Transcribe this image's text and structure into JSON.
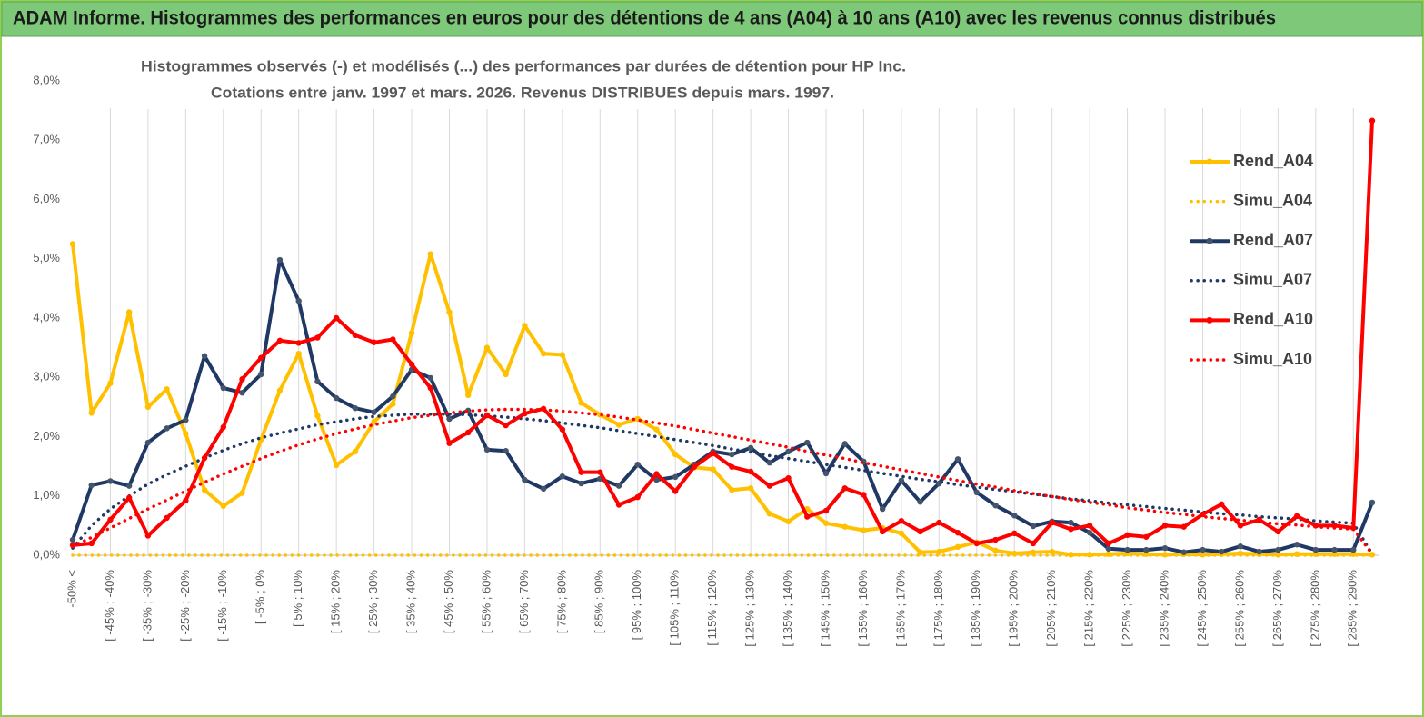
{
  "chart_data": {
    "type": "line",
    "title": "ADAM Informe. Histogrammes des performances en euros pour des détentions de 4 ans (A04) à 10 ans (A10) avec les revenus connus distribués",
    "subtitle": [
      "Histogrammes observés (-) et modélisés (...) des performances par durées de détention pour HP Inc.",
      "Cotations entre janv. 1997 et mars. 2026. Revenus DISTRIBUES depuis mars. 1997."
    ],
    "categories": [
      "-50% <",
      null,
      "[ -45% ; -40%",
      null,
      "[ -35% ; -30%",
      null,
      "[ -25% ; -20%",
      null,
      "[ -15% ; -10%",
      null,
      "[ -5% ; 0%",
      null,
      "[ 5% ; 10%",
      null,
      "[ 15% ; 20%",
      null,
      "[ 25% ; 30%",
      null,
      "[ 35% ; 40%",
      null,
      "[ 45% ; 50%",
      null,
      "[ 55% ; 60%",
      null,
      "[ 65% ; 70%",
      null,
      "[ 75% ; 80%",
      null,
      "[ 85% ; 90%",
      null,
      "[ 95% ; 100%",
      null,
      "[ 105% ; 110%",
      null,
      "[ 115% ; 120%",
      null,
      "[ 125% ; 130%",
      null,
      "[ 135% ; 140%",
      null,
      "[ 145% ; 150%",
      null,
      "[ 155% ; 160%",
      null,
      "[ 165% ; 170%",
      null,
      "[ 175% ; 180%",
      null,
      "[ 185% ; 190%",
      null,
      "[ 195% ; 200%",
      null,
      "[ 205% ; 210%",
      null,
      "[ 215% ; 220%",
      null,
      "[ 225% ; 230%",
      null,
      "[ 235% ; 240%",
      null,
      "[ 245% ; 250%",
      null,
      "[ 255% ; 260%",
      null,
      "[ 265% ; 270%",
      null,
      "[ 275% ; 280%",
      null,
      "[ 285% ; 290%",
      null
    ],
    "series": [
      {
        "name": "Rend_A04",
        "color": "#ffc000",
        "style": "solid",
        "marker": true,
        "values": [
          5.25,
          2.4,
          2.9,
          4.1,
          2.5,
          2.8,
          2.05,
          1.1,
          0.83,
          1.05,
          1.95,
          2.78,
          3.4,
          2.35,
          1.52,
          1.75,
          2.25,
          2.55,
          3.75,
          5.08,
          4.1,
          2.7,
          3.5,
          3.05,
          3.87,
          3.4,
          3.38,
          2.57,
          2.37,
          2.2,
          2.3,
          2.12,
          1.7,
          1.48,
          1.45,
          1.1,
          1.13,
          0.7,
          0.57,
          0.78,
          0.54,
          0.48,
          0.42,
          0.46,
          0.37,
          0.05,
          0.06,
          0.14,
          0.22,
          0.08,
          0.03,
          0.05,
          0.06,
          0.01,
          0.01,
          0.02,
          0.03,
          0.02,
          0.01,
          0.02,
          0.01,
          0.02,
          0.03,
          0.02,
          0.01,
          0.02,
          0.02,
          0.02,
          0.02,
          0.01
        ]
      },
      {
        "name": "Simu_A04",
        "color": "#ffc000",
        "style": "dotted",
        "marker": false,
        "values": [
          0,
          0,
          0,
          0,
          0,
          0,
          0,
          0,
          0,
          0,
          0,
          0,
          0,
          0,
          0,
          0,
          0,
          0,
          0,
          0,
          0,
          0,
          0,
          0,
          0,
          0,
          0,
          0,
          0,
          0,
          0,
          0,
          0,
          0,
          0,
          0,
          0,
          0,
          0,
          0,
          0,
          0,
          0,
          0,
          0,
          0,
          0,
          0,
          0,
          0,
          0,
          0,
          0,
          0,
          0,
          0,
          0,
          0,
          0,
          0,
          0,
          0,
          0,
          0,
          0,
          0,
          0,
          0,
          0,
          0
        ]
      },
      {
        "name": "Rend_A07",
        "color": "#1f3864",
        "style": "solid",
        "marker": true,
        "values": [
          0.26,
          1.18,
          1.25,
          1.17,
          1.9,
          2.14,
          2.28,
          3.36,
          2.82,
          2.74,
          3.05,
          4.98,
          4.29,
          2.93,
          2.65,
          2.48,
          2.41,
          2.68,
          3.13,
          2.99,
          2.3,
          2.44,
          1.78,
          1.76,
          1.27,
          1.12,
          1.33,
          1.21,
          1.29,
          1.17,
          1.53,
          1.27,
          1.32,
          1.53,
          1.75,
          1.7,
          1.81,
          1.56,
          1.75,
          1.9,
          1.38,
          1.88,
          1.58,
          0.78,
          1.26,
          0.9,
          1.21,
          1.62,
          1.06,
          0.84,
          0.67,
          0.49,
          0.57,
          0.55,
          0.38,
          0.11,
          0.09,
          0.09,
          0.12,
          0.05,
          0.09,
          0.06,
          0.15,
          0.06,
          0.09,
          0.18,
          0.09,
          0.09,
          0.09,
          0.89
        ]
      },
      {
        "name": "Simu_A07",
        "color": "#1f3864",
        "style": "dotted",
        "marker": false,
        "values": [
          0.12,
          0.5,
          0.78,
          1.0,
          1.2,
          1.36,
          1.5,
          1.64,
          1.77,
          1.88,
          1.98,
          2.06,
          2.13,
          2.2,
          2.25,
          2.3,
          2.34,
          2.36,
          2.38,
          2.38,
          2.38,
          2.37,
          2.35,
          2.33,
          2.3,
          2.27,
          2.23,
          2.19,
          2.15,
          2.1,
          2.05,
          2.0,
          1.95,
          1.9,
          1.85,
          1.79,
          1.74,
          1.68,
          1.63,
          1.58,
          1.53,
          1.48,
          1.43,
          1.38,
          1.33,
          1.28,
          1.24,
          1.19,
          1.15,
          1.11,
          1.07,
          1.03,
          0.99,
          0.95,
          0.92,
          0.88,
          0.85,
          0.82,
          0.79,
          0.76,
          0.73,
          0.7,
          0.68,
          0.65,
          0.63,
          0.61,
          0.58,
          0.56,
          0.54,
          0.02
        ]
      },
      {
        "name": "Rend_A10",
        "color": "#ff0000",
        "style": "solid",
        "marker": true,
        "values": [
          0.17,
          0.2,
          0.6,
          0.97,
          0.33,
          0.63,
          0.92,
          1.64,
          2.16,
          2.97,
          3.33,
          3.62,
          3.58,
          3.67,
          4.0,
          3.71,
          3.59,
          3.64,
          3.22,
          2.82,
          1.89,
          2.07,
          2.36,
          2.19,
          2.39,
          2.47,
          2.12,
          1.4,
          1.4,
          0.85,
          0.98,
          1.37,
          1.08,
          1.49,
          1.72,
          1.49,
          1.41,
          1.17,
          1.3,
          0.65,
          0.75,
          1.13,
          1.02,
          0.4,
          0.58,
          0.4,
          0.55,
          0.38,
          0.2,
          0.26,
          0.37,
          0.2,
          0.55,
          0.44,
          0.5,
          0.2,
          0.34,
          0.31,
          0.5,
          0.48,
          0.69,
          0.86,
          0.5,
          0.6,
          0.4,
          0.66,
          0.5,
          0.5,
          0.46,
          7.33
        ]
      },
      {
        "name": "Simu_A10",
        "color": "#ff0000",
        "style": "dotted",
        "marker": false,
        "values": [
          0.15,
          0.3,
          0.46,
          0.62,
          0.78,
          0.93,
          1.08,
          1.23,
          1.37,
          1.5,
          1.63,
          1.75,
          1.86,
          1.96,
          2.05,
          2.13,
          2.2,
          2.26,
          2.32,
          2.36,
          2.4,
          2.43,
          2.45,
          2.46,
          2.46,
          2.45,
          2.43,
          2.4,
          2.37,
          2.33,
          2.28,
          2.23,
          2.18,
          2.12,
          2.06,
          2.0,
          1.94,
          1.88,
          1.82,
          1.75,
          1.69,
          1.63,
          1.56,
          1.5,
          1.44,
          1.38,
          1.32,
          1.26,
          1.2,
          1.15,
          1.09,
          1.04,
          0.99,
          0.94,
          0.89,
          0.85,
          0.8,
          0.76,
          0.72,
          0.69,
          0.65,
          0.62,
          0.59,
          0.56,
          0.53,
          0.51,
          0.48,
          0.46,
          0.44,
          0.02
        ]
      }
    ],
    "ylim": [
      0,
      8
    ],
    "yticks": [
      {
        "value": 0,
        "label": "0,0%"
      },
      {
        "value": 1,
        "label": "1,0%"
      },
      {
        "value": 2,
        "label": "2,0%"
      },
      {
        "value": 3,
        "label": "3,0%"
      },
      {
        "value": 4,
        "label": "4,0%"
      },
      {
        "value": 5,
        "label": "5,0%"
      },
      {
        "value": 6,
        "label": "6,0%"
      },
      {
        "value": 7,
        "label": "7,0%"
      },
      {
        "value": 8,
        "label": "8,0%"
      }
    ],
    "grid": true,
    "legend": "right"
  }
}
